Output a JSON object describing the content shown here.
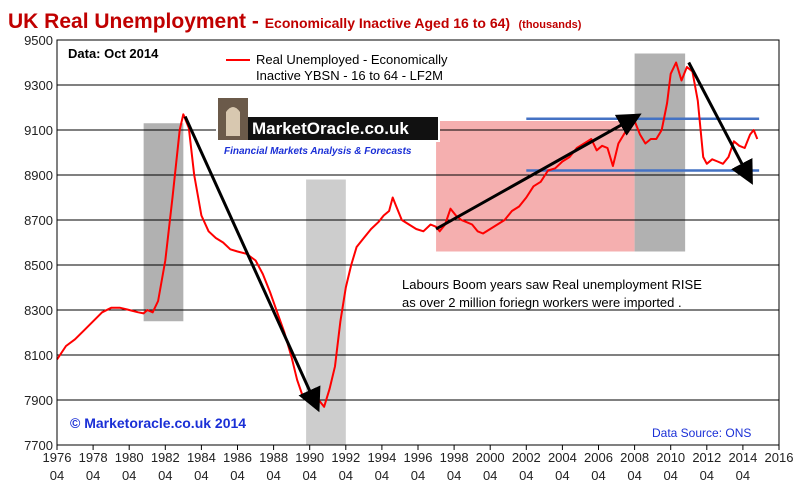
{
  "title": {
    "main": "UK  Real Unemployment - ",
    "sub": "Economically Inactive Aged 16 to 64)",
    "unit": "(thousands)"
  },
  "note": "Data: Oct  2014",
  "legend": {
    "line1": "Real Unemployed - Economically",
    "line2": "Inactive YBSN - 16 to 64 - LF2M",
    "color": "#ff0000"
  },
  "logo": {
    "text": "MarketOracle.co.uk",
    "tagline": "Financial Markets Analysis & Forecasts"
  },
  "annotation": {
    "line1": "Labours Boom years saw Real unemployment RISE",
    "line2": "as over 2 million foriegn workers were imported ."
  },
  "copyright": "© Marketoracle.co.uk 2014",
  "source": "Data Source: ONS",
  "chart_data": {
    "type": "line",
    "title": "UK  Real Unemployment - Economically Inactive Aged 16 to 64) (thousands)",
    "xlabel": "",
    "ylabel": "",
    "xlim": [
      1976.0,
      2016.0
    ],
    "ylim": [
      7700,
      9500
    ],
    "y_ticks": [
      7700,
      7900,
      8100,
      8300,
      8500,
      8700,
      8900,
      9100,
      9300,
      9500
    ],
    "x_ticks": [
      {
        "year": "1976",
        "q": "04"
      },
      {
        "year": "1978",
        "q": "04"
      },
      {
        "year": "1980",
        "q": "04"
      },
      {
        "year": "1982",
        "q": "04"
      },
      {
        "year": "1984",
        "q": "04"
      },
      {
        "year": "1986",
        "q": "04"
      },
      {
        "year": "1988",
        "q": "04"
      },
      {
        "year": "1990",
        "q": "04"
      },
      {
        "year": "1992",
        "q": "04"
      },
      {
        "year": "1994",
        "q": "04"
      },
      {
        "year": "1996",
        "q": "04"
      },
      {
        "year": "1998",
        "q": "04"
      },
      {
        "year": "2000",
        "q": "04"
      },
      {
        "year": "2002",
        "q": "04"
      },
      {
        "year": "2004",
        "q": "04"
      },
      {
        "year": "2006",
        "q": "04"
      },
      {
        "year": "2008",
        "q": "04"
      },
      {
        "year": "2010",
        "q": "04"
      },
      {
        "year": "2012",
        "q": "04"
      },
      {
        "year": "2014",
        "q": "04"
      },
      {
        "year": "2016",
        "q": ""
      }
    ],
    "grid": "horizontal",
    "series": [
      {
        "name": "Real Unemployed - Economically Inactive YBSN - 16 to 64 - LF2M",
        "color": "#ff0000",
        "x": [
          1976.0,
          1976.5,
          1977.0,
          1977.5,
          1978.0,
          1978.5,
          1979.0,
          1979.5,
          1980.0,
          1980.5,
          1980.8,
          1981.0,
          1981.3,
          1981.6,
          1982.0,
          1982.4,
          1982.8,
          1983.0,
          1983.3,
          1983.6,
          1984.0,
          1984.4,
          1984.8,
          1985.2,
          1985.6,
          1986.0,
          1986.5,
          1987.0,
          1987.4,
          1987.8,
          1988.2,
          1988.6,
          1989.0,
          1989.3,
          1989.6,
          1989.9,
          1990.2,
          1990.5,
          1990.8,
          1991.1,
          1991.4,
          1991.7,
          1992.0,
          1992.3,
          1992.6,
          1993.0,
          1993.4,
          1993.8,
          1994.1,
          1994.4,
          1994.6,
          1994.8,
          1995.1,
          1995.5,
          1995.9,
          1996.3,
          1996.7,
          1997.0,
          1997.2,
          1997.5,
          1997.8,
          1998.1,
          1998.4,
          1998.7,
          1999.0,
          1999.3,
          1999.6,
          2000.0,
          2000.4,
          2000.8,
          2001.2,
          2001.6,
          2002.0,
          2002.4,
          2002.8,
          2003.2,
          2003.6,
          2004.0,
          2004.4,
          2004.8,
          2005.2,
          2005.6,
          2005.9,
          2006.2,
          2006.5,
          2006.8,
          2007.1,
          2007.4,
          2007.7,
          2008.0,
          2008.3,
          2008.6,
          2008.9,
          2009.2,
          2009.5,
          2009.8,
          2010.0,
          2010.3,
          2010.6,
          2010.9,
          2011.2,
          2011.5,
          2011.8,
          2012.0,
          2012.3,
          2012.6,
          2012.9,
          2013.2,
          2013.5,
          2013.8,
          2014.1,
          2014.4,
          2014.6,
          2014.8
        ],
        "values": [
          8080,
          8140,
          8170,
          8210,
          8250,
          8290,
          8310,
          8310,
          8300,
          8290,
          8285,
          8300,
          8290,
          8340,
          8520,
          8800,
          9100,
          9170,
          9110,
          8900,
          8720,
          8650,
          8620,
          8600,
          8570,
          8560,
          8550,
          8520,
          8460,
          8380,
          8290,
          8200,
          8090,
          7990,
          7920,
          7910,
          7880,
          7900,
          7870,
          7950,
          8050,
          8250,
          8400,
          8500,
          8580,
          8620,
          8660,
          8690,
          8720,
          8740,
          8800,
          8760,
          8700,
          8680,
          8660,
          8650,
          8680,
          8670,
          8650,
          8680,
          8750,
          8720,
          8700,
          8690,
          8680,
          8650,
          8640,
          8660,
          8680,
          8700,
          8740,
          8760,
          8800,
          8850,
          8870,
          8920,
          8930,
          8960,
          8980,
          9020,
          9040,
          9060,
          9010,
          9030,
          9020,
          8940,
          9040,
          9080,
          9120,
          9140,
          9080,
          9040,
          9060,
          9060,
          9100,
          9220,
          9350,
          9400,
          9320,
          9380,
          9360,
          9230,
          8980,
          8950,
          8970,
          8960,
          8950,
          8980,
          9050,
          9030,
          9020,
          9080,
          9100,
          9060
        ]
      }
    ],
    "trend_arrows": [
      {
        "from": [
          1983.1,
          9160
        ],
        "to": [
          1990.4,
          7870
        ]
      },
      {
        "from": [
          1997.0,
          8660
        ],
        "to": [
          2008.1,
          9160
        ]
      },
      {
        "from": [
          2011.0,
          9400
        ],
        "to": [
          2014.4,
          8880
        ]
      }
    ],
    "shaded_regions": [
      {
        "x0": 1980.8,
        "x1": 1983.0,
        "y0": 8250,
        "y1": 9130,
        "color": "#a9a9a9"
      },
      {
        "x0": 1989.8,
        "x1": 1992.0,
        "y0": 7700,
        "y1": 8880,
        "color": "#c8c8c8"
      },
      {
        "x0": 1997.0,
        "x1": 2008.0,
        "y0": 8560,
        "y1": 9140,
        "color": "#f4a6a6"
      },
      {
        "x0": 2008.0,
        "x1": 2010.8,
        "y0": 8560,
        "y1": 9440,
        "color": "#a9a9a9"
      }
    ],
    "reference_lines": [
      {
        "x0": 2002.0,
        "x1": 2014.9,
        "y": 9150,
        "color": "#4472c4"
      },
      {
        "x0": 2002.0,
        "x1": 2014.9,
        "y": 8920,
        "color": "#4472c4"
      }
    ]
  }
}
